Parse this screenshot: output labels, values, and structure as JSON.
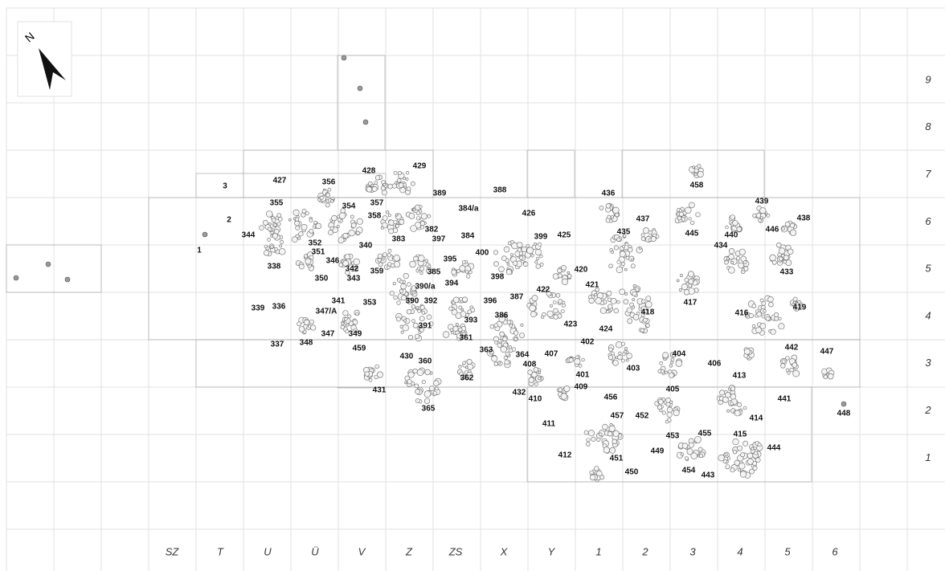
{
  "north": "N",
  "row_labels": [
    "9",
    "8",
    "7",
    "6",
    "5",
    "4",
    "3",
    "2",
    "1"
  ],
  "column_labels": [
    "SZ",
    "T",
    "U",
    "Ü",
    "V",
    "Z",
    "ZS",
    "X",
    "Y",
    "1",
    "2",
    "3",
    "4",
    "5",
    "6"
  ],
  "features": [
    "3",
    "427",
    "356",
    "428",
    "429",
    "389",
    "388",
    "436",
    "458",
    "439",
    "438",
    "355",
    "357",
    "354",
    "384/a",
    "426",
    "437",
    "2",
    "358",
    "382",
    "399",
    "425",
    "435",
    "445",
    "440",
    "446",
    "344",
    "383",
    "397",
    "384",
    "352",
    "340",
    "434",
    "1",
    "351",
    "400",
    "395",
    "338",
    "346",
    "342",
    "359",
    "420",
    "433",
    "350",
    "343",
    "398",
    "394",
    "390/a",
    "385",
    "421",
    "422",
    "417",
    "341",
    "353",
    "390",
    "392",
    "396",
    "387",
    "418",
    "416",
    "419",
    "339",
    "336",
    "347/A",
    "386",
    "393",
    "423",
    "424",
    "349",
    "347",
    "391",
    "361",
    "337",
    "348",
    "402",
    "442",
    "447",
    "459",
    "363",
    "364",
    "407",
    "404",
    "430",
    "360",
    "403",
    "406",
    "408",
    "413",
    "401",
    "362",
    "409",
    "405",
    "431",
    "432",
    "456",
    "441",
    "410",
    "448",
    "365",
    "457",
    "452",
    "414",
    "411",
    "453",
    "455",
    "415",
    "444",
    "449",
    "412",
    "451",
    "450",
    "454",
    "443"
  ]
}
